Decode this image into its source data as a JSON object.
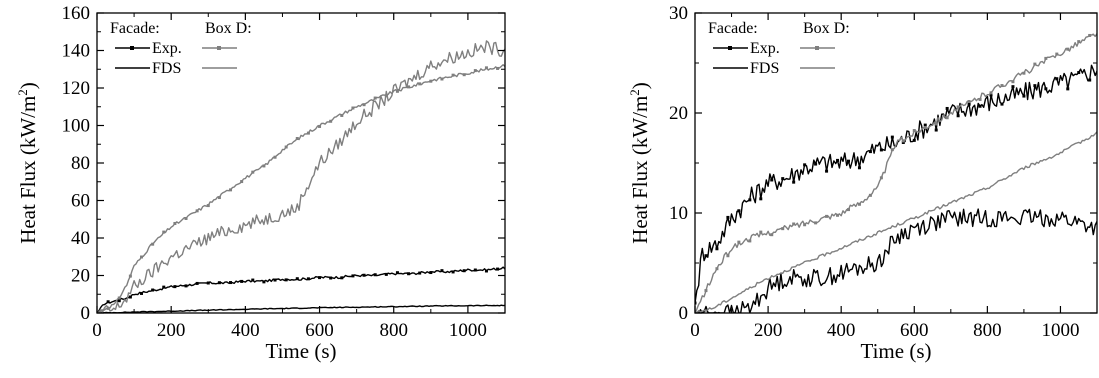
{
  "chart_data": [
    {
      "type": "line",
      "xlabel": "Time (s)",
      "ylabel_main": "Heat Flux (kW/m",
      "ylabel_sup": "2",
      "ylabel_tail": ")",
      "xlim": [
        0,
        1100
      ],
      "ylim": [
        0,
        160
      ],
      "xticks": [
        0,
        200,
        400,
        600,
        800,
        1000
      ],
      "yticks": [
        0,
        20,
        40,
        60,
        80,
        100,
        120,
        140,
        160
      ],
      "legend": {
        "position": "top-left",
        "header_left": "Facade:",
        "header_right": "Box D:",
        "rows": [
          "Exp.",
          "FDS"
        ]
      },
      "series": [
        {
          "name": "Facade Exp.",
          "color": "#000000",
          "marker": true,
          "noise": 0.6,
          "x": [
            0,
            20,
            40,
            60,
            80,
            100,
            150,
            200,
            250,
            300,
            350,
            400,
            450,
            500,
            550,
            600,
            650,
            700,
            750,
            800,
            850,
            900,
            950,
            1000,
            1050,
            1100
          ],
          "y": [
            0,
            5,
            6,
            7,
            8,
            10,
            12,
            14,
            15,
            16,
            16,
            17,
            17,
            18,
            18,
            19,
            19,
            20,
            20,
            21,
            21,
            22,
            22,
            23,
            23,
            24
          ]
        },
        {
          "name": "Facade FDS",
          "color": "#000000",
          "marker": false,
          "noise": 0.2,
          "x": [
            0,
            100,
            200,
            300,
            400,
            500,
            600,
            700,
            800,
            900,
            1000,
            1100
          ],
          "y": [
            0,
            0.5,
            1,
            1.5,
            2,
            2.4,
            2.8,
            3.1,
            3.4,
            3.7,
            3.9,
            4
          ]
        },
        {
          "name": "Box D Exp.",
          "color": "#7f7f7f",
          "marker": true,
          "noise": 0.8,
          "x": [
            0,
            50,
            80,
            100,
            150,
            200,
            250,
            300,
            350,
            400,
            440,
            460,
            500,
            550,
            600,
            650,
            700,
            750,
            800,
            850,
            900,
            950,
            1000,
            1050,
            1100
          ],
          "y": [
            0,
            5,
            15,
            25,
            37,
            46,
            52,
            58,
            65,
            72,
            77,
            80,
            87,
            94,
            100,
            105,
            110,
            114,
            118,
            121,
            124,
            126,
            128,
            130,
            132
          ]
        },
        {
          "name": "Box D FDS",
          "color": "#7f7f7f",
          "marker": false,
          "noise": 3.5,
          "x": [
            0,
            50,
            80,
            100,
            150,
            200,
            250,
            300,
            350,
            400,
            450,
            500,
            540,
            560,
            600,
            650,
            700,
            750,
            800,
            850,
            900,
            950,
            1000,
            1050,
            1100
          ],
          "y": [
            0,
            2,
            8,
            14,
            22,
            30,
            35,
            40,
            44,
            47,
            50,
            53,
            56,
            65,
            80,
            90,
            102,
            110,
            118,
            125,
            132,
            136,
            139,
            142,
            140
          ]
        }
      ]
    },
    {
      "type": "line",
      "xlabel": "Time (s)",
      "ylabel_main": "Heat Flux (kW/m",
      "ylabel_sup": "2",
      "ylabel_tail": ")",
      "xlim": [
        0,
        1100
      ],
      "ylim": [
        0,
        30
      ],
      "xticks": [
        0,
        200,
        400,
        600,
        800,
        1000
      ],
      "yticks": [
        0,
        10,
        20,
        30
      ],
      "legend": {
        "position": "top-left",
        "header_left": "Facade:",
        "header_right": "Box D:",
        "rows": [
          "Exp.",
          "FDS"
        ]
      },
      "series": [
        {
          "name": "Facade Exp.",
          "color": "#000000",
          "marker": true,
          "noise": 1.0,
          "x": [
            0,
            20,
            60,
            100,
            150,
            200,
            250,
            300,
            350,
            400,
            450,
            500,
            550,
            600,
            650,
            700,
            750,
            800,
            850,
            900,
            950,
            1000,
            1050,
            1100
          ],
          "y": [
            1,
            6,
            7,
            9.5,
            11.5,
            13,
            13.5,
            14.5,
            15,
            15,
            15.5,
            16.5,
            17,
            18,
            19,
            20,
            20.5,
            21,
            21.5,
            22,
            22.5,
            23,
            23.5,
            24.5
          ]
        },
        {
          "name": "Facade FDS",
          "color": "#000000",
          "marker": false,
          "noise": 0.9,
          "x": [
            0,
            100,
            150,
            200,
            250,
            300,
            350,
            400,
            450,
            500,
            520,
            550,
            600,
            650,
            700,
            750,
            800,
            850,
            900,
            950,
            1000,
            1050,
            1100
          ],
          "y": [
            0,
            0,
            0.5,
            2.5,
            3.5,
            3.5,
            3.5,
            4,
            4.5,
            5,
            6,
            7.5,
            8.5,
            9,
            9.5,
            9.5,
            9.5,
            9.5,
            9.5,
            9.5,
            9.5,
            9,
            8.5
          ]
        },
        {
          "name": "Box D Exp.",
          "color": "#7f7f7f",
          "marker": true,
          "noise": 0.3,
          "x": [
            0,
            20,
            60,
            100,
            150,
            200,
            250,
            300,
            350,
            400,
            450,
            500,
            550,
            600,
            650,
            700,
            750,
            800,
            850,
            900,
            950,
            1000,
            1050,
            1100
          ],
          "y": [
            0,
            1.5,
            4.5,
            6.5,
            7.5,
            8,
            8.5,
            9,
            9.5,
            10,
            11,
            12.5,
            17,
            18,
            19,
            20,
            21,
            22,
            23,
            24,
            25,
            26,
            27,
            28
          ]
        },
        {
          "name": "Box D FDS",
          "color": "#7f7f7f",
          "marker": false,
          "noise": 0.15,
          "x": [
            0,
            50,
            100,
            150,
            200,
            300,
            400,
            500,
            600,
            700,
            800,
            900,
            1000,
            1100
          ],
          "y": [
            0,
            0.5,
            1.5,
            2.5,
            3.5,
            5,
            6.5,
            8,
            9.5,
            11,
            12.5,
            14.5,
            16,
            18
          ]
        }
      ]
    }
  ]
}
